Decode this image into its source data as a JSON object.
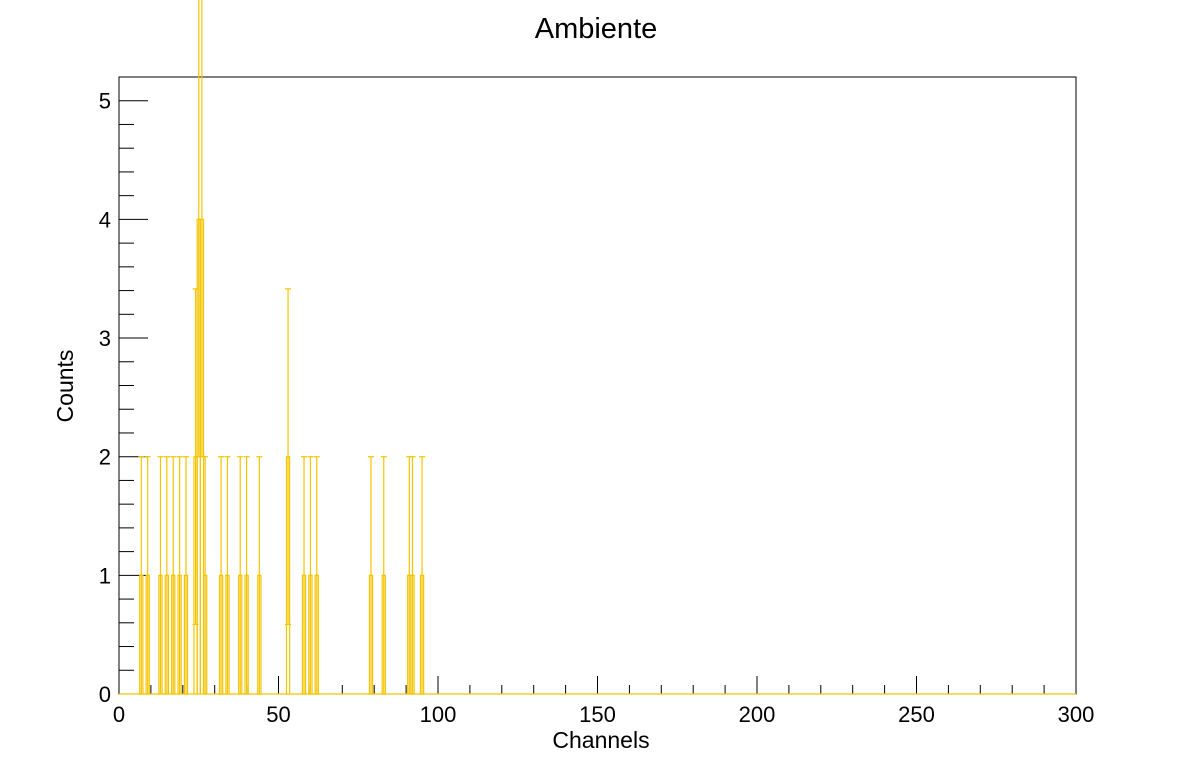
{
  "chart_data": {
    "type": "histogram",
    "title": "Ambiente",
    "xlabel": "Channels",
    "ylabel": "Counts",
    "xlim": [
      0,
      300
    ],
    "ylim": [
      0,
      5.2
    ],
    "grid": false,
    "legend": "none",
    "color": "#f5c400",
    "x_ticks": [
      "0",
      "50",
      "100",
      "150",
      "200",
      "250",
      "300"
    ],
    "y_ticks": [
      "0",
      "1",
      "2",
      "3",
      "4",
      "5"
    ],
    "bins": [
      {
        "x": 7,
        "count": 1
      },
      {
        "x": 9,
        "count": 1
      },
      {
        "x": 13,
        "count": 1
      },
      {
        "x": 15,
        "count": 1
      },
      {
        "x": 17,
        "count": 1
      },
      {
        "x": 19,
        "count": 1
      },
      {
        "x": 21,
        "count": 1
      },
      {
        "x": 24,
        "count": 2
      },
      {
        "x": 25,
        "count": 4
      },
      {
        "x": 26,
        "count": 4
      },
      {
        "x": 27,
        "count": 1
      },
      {
        "x": 32,
        "count": 1
      },
      {
        "x": 34,
        "count": 1
      },
      {
        "x": 38,
        "count": 1
      },
      {
        "x": 40,
        "count": 1
      },
      {
        "x": 44,
        "count": 1
      },
      {
        "x": 53,
        "count": 2
      },
      {
        "x": 58,
        "count": 1
      },
      {
        "x": 60,
        "count": 1
      },
      {
        "x": 62,
        "count": 1
      },
      {
        "x": 79,
        "count": 1
      },
      {
        "x": 83,
        "count": 1
      },
      {
        "x": 91,
        "count": 1
      },
      {
        "x": 92,
        "count": 1
      },
      {
        "x": 95,
        "count": 1
      }
    ]
  }
}
